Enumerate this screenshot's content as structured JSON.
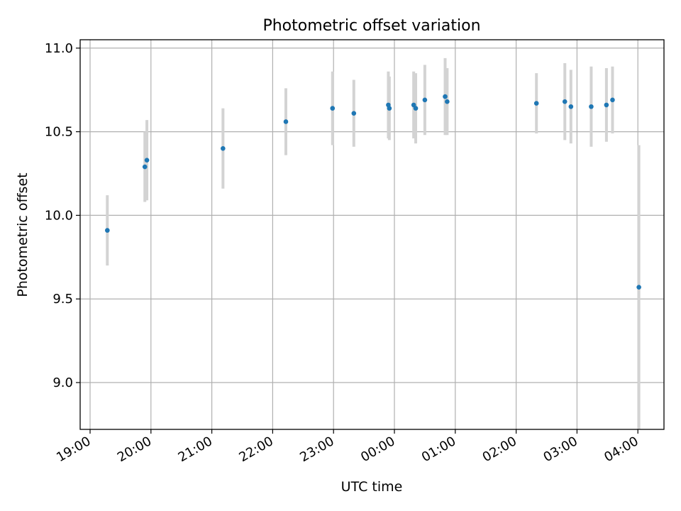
{
  "chart_data": {
    "type": "scatter",
    "title": "Photometric offset variation",
    "xlabel": "UTC time",
    "ylabel": "Photometric offset",
    "x_ticks": [
      "19:00",
      "20:00",
      "21:00",
      "22:00",
      "23:00",
      "00:00",
      "01:00",
      "02:00",
      "03:00",
      "04:00"
    ],
    "y_ticks": [
      "9.0",
      "9.5",
      "10.0",
      "10.5",
      "11.0"
    ],
    "xlim": [
      "19:00",
      "04:00"
    ],
    "ylim": [
      8.72,
      11.05
    ],
    "grid": true,
    "points": [
      {
        "x": "19:17",
        "y": 9.91,
        "err": 0.21
      },
      {
        "x": "19:54",
        "y": 10.29,
        "err": 0.21
      },
      {
        "x": "19:56",
        "y": 10.33,
        "err": 0.24
      },
      {
        "x": "21:11",
        "y": 10.4,
        "err": 0.24
      },
      {
        "x": "22:13",
        "y": 10.56,
        "err": 0.2
      },
      {
        "x": "22:59",
        "y": 10.64,
        "err": 0.22
      },
      {
        "x": "23:20",
        "y": 10.61,
        "err": 0.2
      },
      {
        "x": "23:54",
        "y": 10.66,
        "err": 0.2
      },
      {
        "x": "23:55",
        "y": 10.64,
        "err": 0.19
      },
      {
        "x": "00:19",
        "y": 10.66,
        "err": 0.2
      },
      {
        "x": "00:21",
        "y": 10.64,
        "err": 0.21
      },
      {
        "x": "00:30",
        "y": 10.69,
        "err": 0.21
      },
      {
        "x": "00:50",
        "y": 10.71,
        "err": 0.23
      },
      {
        "x": "00:52",
        "y": 10.68,
        "err": 0.2
      },
      {
        "x": "02:20",
        "y": 10.67,
        "err": 0.18
      },
      {
        "x": "02:48",
        "y": 10.68,
        "err": 0.23
      },
      {
        "x": "02:54",
        "y": 10.65,
        "err": 0.22
      },
      {
        "x": "03:14",
        "y": 10.65,
        "err": 0.24
      },
      {
        "x": "03:29",
        "y": 10.66,
        "err": 0.22
      },
      {
        "x": "03:35",
        "y": 10.69,
        "err": 0.2
      },
      {
        "x": "04:01",
        "y": 9.57,
        "err": 0.85
      }
    ],
    "colors": {
      "point": "#1f77b4",
      "errorbar": "#d3d3d3",
      "grid": "#b0b0b0"
    }
  }
}
